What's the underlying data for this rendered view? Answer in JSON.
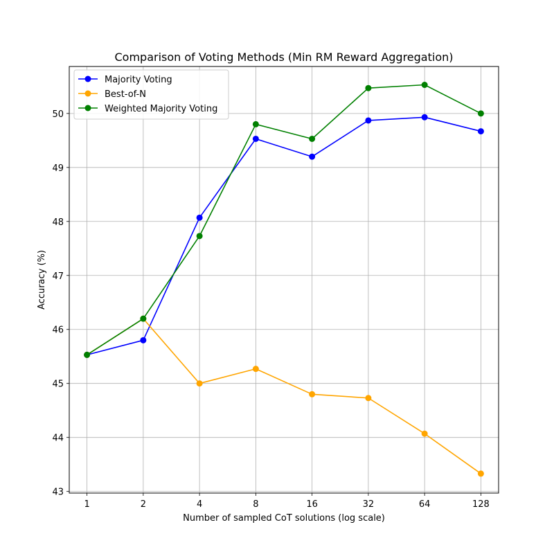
{
  "chart_data": {
    "type": "line",
    "title": "Comparison of Voting Methods (Min RM Reward Aggregation)",
    "xlabel": "Number of sampled CoT solutions (log scale)",
    "ylabel": "Accuracy (%)",
    "x": [
      1,
      2,
      4,
      8,
      16,
      32,
      64,
      128
    ],
    "x_tick_labels": [
      "1",
      "2",
      "4",
      "8",
      "16",
      "32",
      "64",
      "128"
    ],
    "x_scale": "log2",
    "ylim": [
      42.97,
      50.87
    ],
    "y_ticks": [
      43,
      44,
      45,
      46,
      47,
      48,
      49,
      50
    ],
    "grid": true,
    "legend_position": "top-left",
    "series": [
      {
        "name": "Majority Voting",
        "color": "#0000ff",
        "values": [
          45.53,
          45.8,
          48.07,
          49.53,
          49.2,
          49.87,
          49.93,
          49.67
        ]
      },
      {
        "name": "Best-of-N",
        "color": "#ffa500",
        "values": [
          45.53,
          46.2,
          45.0,
          45.27,
          44.8,
          44.73,
          44.07,
          43.33
        ]
      },
      {
        "name": "Weighted Majority Voting",
        "color": "#008000",
        "values": [
          45.53,
          46.2,
          47.73,
          49.8,
          49.53,
          50.47,
          50.53,
          50.0
        ]
      }
    ]
  }
}
